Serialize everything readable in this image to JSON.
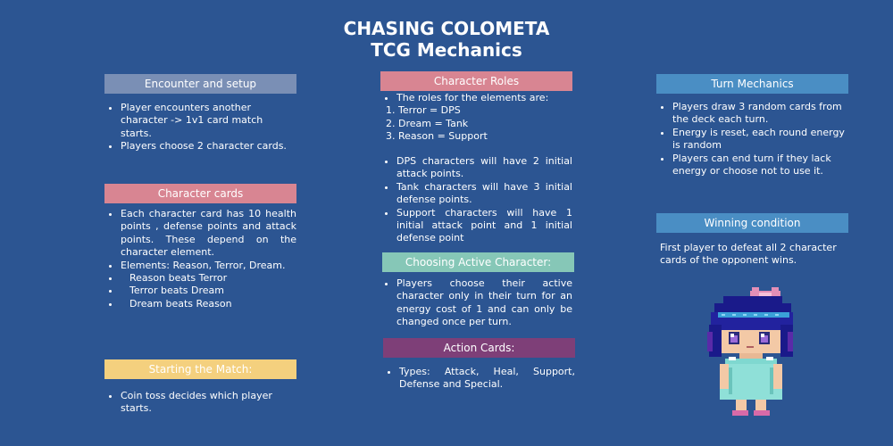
{
  "title": {
    "line1": "CHASING COLOMETA",
    "line2": "TCG Mechanics"
  },
  "colors": {
    "background": "#2c5592",
    "slate": "#7a8fb5",
    "pink": "#d88592",
    "blue": "#4a8ec4",
    "teal": "#86c7b7",
    "purple": "#7e3f78",
    "yellow": "#f4d07e"
  },
  "encounter": {
    "header": "Encounter and setup",
    "items": [
      "Player encounters another character -> 1v1 card match starts.",
      "Players choose 2 character cards."
    ]
  },
  "character_cards": {
    "header": "Character cards",
    "items": [
      "Each character card has 10 health points , defense points and attack points. These depend on the character element.",
      "Elements: Reason, Terror, Dream.",
      "Reason beats Terror",
      "Terror beats  Dream",
      "Dream beats Reason"
    ]
  },
  "starting_match": {
    "header": "Starting the Match:",
    "items": [
      "Coin toss decides which player starts."
    ]
  },
  "character_roles": {
    "header": "Character Roles",
    "intro": "The roles for the elements are:",
    "roles": [
      "1. Terror = DPS",
      "2. Dream = Tank",
      "3. Reason = Support"
    ],
    "items": [
      "DPS characters will have 2 initial attack points.",
      "Tank characters will have 3 initial defense points.",
      "Support characters will  have 1 initial attack point and 1 initial defense point"
    ]
  },
  "active_character": {
    "header": "Choosing Active Character:",
    "items": [
      "Players choose their active character only in their turn for an energy cost of 1 and can only be changed once per turn."
    ]
  },
  "action_cards": {
    "header": "Action Cards:",
    "items": [
      "Types: Attack, Heal, Support, Defense and Special."
    ]
  },
  "turn_mechanics": {
    "header": "Turn Mechanics",
    "items": [
      "Players draw 3 random cards from the deck each turn.",
      "Energy is reset, each round energy is random",
      "Players can end turn if they lack energy or choose not to use it."
    ]
  },
  "winning": {
    "header": "Winning condition",
    "text": "First player to defeat all 2 character cards of the opponent wins."
  },
  "sprite": {
    "icon": "pixel-character-icon"
  }
}
